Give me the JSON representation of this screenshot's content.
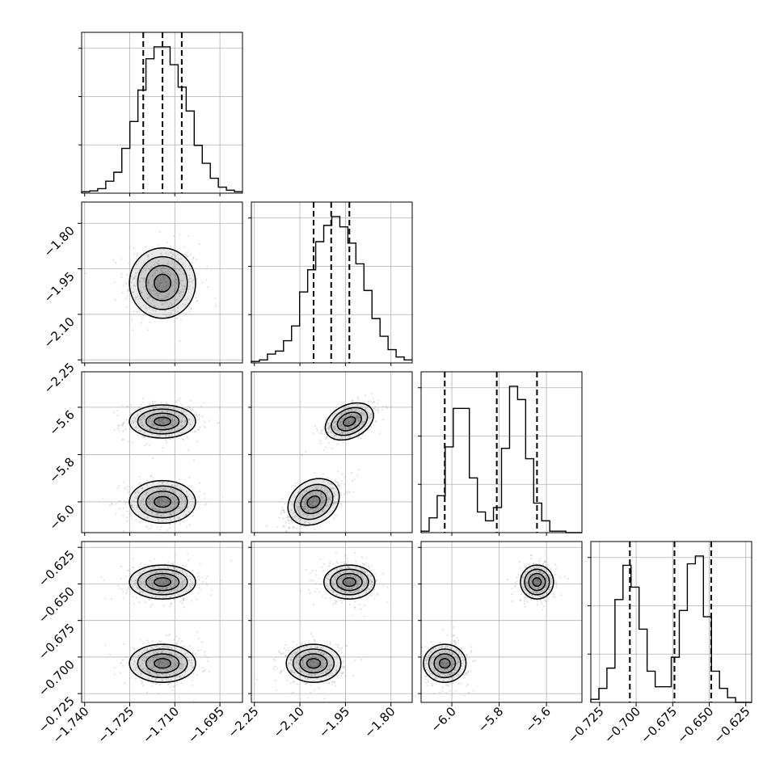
{
  "chart_data": {
    "type": "corner",
    "parameters": [
      {
        "ticks": [
          -1.74,
          -1.725,
          -1.71,
          -1.695
        ],
        "tick_labels": [
          "−1.740",
          "−1.725",
          "−1.710",
          "−1.695"
        ],
        "range": [
          -1.741,
          -1.6875
        ]
      },
      {
        "ticks": [
          -2.25,
          -2.1,
          -1.95,
          -1.8
        ],
        "tick_labels": [
          "−2.25",
          "−2.10",
          "−1.95",
          "−1.80"
        ],
        "range": [
          -2.26,
          -1.73
        ]
      },
      {
        "ticks": [
          -6.0,
          -5.8,
          -5.6
        ],
        "tick_labels": [
          "−6.0",
          "−5.8",
          "−5.6"
        ],
        "range": [
          -6.13,
          -5.45
        ]
      },
      {
        "ticks": [
          -0.725,
          -0.7,
          -0.675,
          -0.65,
          -0.625
        ],
        "tick_labels": [
          "−0.725",
          "−0.700",
          "−0.675",
          "−0.650",
          "−0.625"
        ],
        "range": [
          -0.731,
          -0.621
        ]
      }
    ],
    "histograms": [
      {
        "param": 0,
        "quantiles": [
          -1.7205,
          -1.7141,
          -1.7077
        ],
        "bin_edges_range": [
          -1.741,
          -1.6875
        ],
        "counts": [
          0.01,
          0.015,
          0.03,
          0.08,
          0.14,
          0.3,
          0.48,
          0.69,
          0.9,
          0.98,
          0.98,
          0.86,
          0.71,
          0.55,
          0.32,
          0.2,
          0.1,
          0.04,
          0.02,
          0.01
        ]
      },
      {
        "param": 1,
        "quantiles": [
          -2.055,
          -1.997,
          -1.937
        ],
        "bin_edges_range": [
          -2.26,
          -1.73
        ],
        "counts": [
          0.01,
          0.02,
          0.06,
          0.08,
          0.15,
          0.25,
          0.48,
          0.63,
          0.82,
          0.93,
          0.99,
          0.92,
          0.81,
          0.67,
          0.49,
          0.3,
          0.18,
          0.09,
          0.04,
          0.02
        ]
      },
      {
        "param": 2,
        "quantiles": [
          -6.03,
          -5.81,
          -5.64
        ],
        "bin_edges_range": [
          -6.13,
          -5.45
        ],
        "counts": [
          0.01,
          0.1,
          0.25,
          0.58,
          0.84,
          0.84,
          0.37,
          0.14,
          0.08,
          0.17,
          0.57,
          0.99,
          0.9,
          0.5,
          0.2,
          0.08,
          0.01,
          0.01,
          0.0,
          0.0
        ]
      },
      {
        "param": 3,
        "quantiles": [
          -0.7043,
          -0.6738,
          -0.6487
        ],
        "bin_edges_range": [
          -0.731,
          -0.621
        ],
        "counts": [
          0.02,
          0.09,
          0.22,
          0.66,
          0.88,
          0.74,
          0.47,
          0.2,
          0.1,
          0.1,
          0.29,
          0.59,
          0.89,
          0.94,
          0.55,
          0.2,
          0.09,
          0.03,
          0.0,
          0.0
        ]
      }
    ],
    "joint": [
      {
        "row": 1,
        "col": 0,
        "modes": [
          {
            "x": -1.7141,
            "y": -1.997,
            "sx": 0.0055,
            "sy": 0.058,
            "rho": 0
          }
        ]
      },
      {
        "row": 2,
        "col": 0,
        "modes": [
          {
            "x": -1.7141,
            "y": -5.66,
            "sx": 0.0055,
            "sy": 0.035,
            "rho": 0
          },
          {
            "x": -1.7141,
            "y": -6.0,
            "sx": 0.0055,
            "sy": 0.045,
            "rho": 0
          }
        ]
      },
      {
        "row": 2,
        "col": 1,
        "modes": [
          {
            "x": -1.937,
            "y": -5.66,
            "sx": 0.042,
            "sy": 0.035,
            "rho": 0.55
          },
          {
            "x": -2.055,
            "y": -6.0,
            "sx": 0.045,
            "sy": 0.045,
            "rho": 0.6
          }
        ]
      },
      {
        "row": 3,
        "col": 0,
        "modes": [
          {
            "x": -1.7141,
            "y": -0.6487,
            "sx": 0.0055,
            "sy": 0.0058,
            "rho": 0
          },
          {
            "x": -1.7141,
            "y": -0.7043,
            "sx": 0.0055,
            "sy": 0.0065,
            "rho": 0
          }
        ]
      },
      {
        "row": 3,
        "col": 1,
        "modes": [
          {
            "x": -1.937,
            "y": -0.6487,
            "sx": 0.042,
            "sy": 0.0058,
            "rho": 0
          },
          {
            "x": -2.055,
            "y": -0.7043,
            "sx": 0.045,
            "sy": 0.0065,
            "rho": 0
          }
        ]
      },
      {
        "row": 3,
        "col": 2,
        "modes": [
          {
            "x": -5.64,
            "y": -0.6487,
            "sx": 0.035,
            "sy": 0.0058,
            "rho": 0
          },
          {
            "x": -6.03,
            "y": -0.7043,
            "sx": 0.045,
            "sy": 0.0065,
            "rho": 0
          }
        ]
      }
    ],
    "contour_levels_sigma": [
      0.5,
      1.0,
      1.5,
      2.0
    ],
    "grid": true,
    "title": "",
    "xlabel": "",
    "ylabel": ""
  }
}
